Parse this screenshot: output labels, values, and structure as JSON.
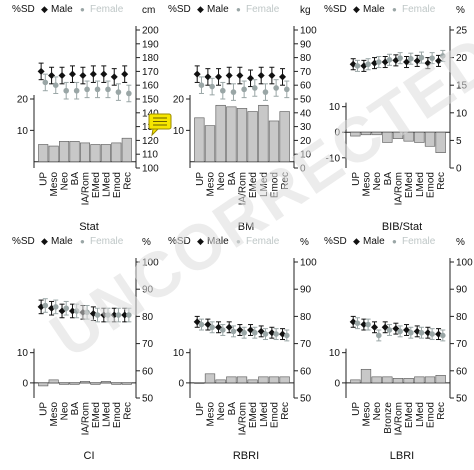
{
  "figure": {
    "watermark_text": "UNCORRECTED PROOF",
    "colors": {
      "male": "#111111",
      "female": "#9aa6a6",
      "bar": "#c8c8c8",
      "axis": "#222222",
      "note_fill": "#f6e600",
      "note_stroke": "#9a8a00",
      "watermark": "#dedede"
    }
  },
  "chart_data": [
    {
      "type": "bar+errorbar",
      "panel_title": "Stat",
      "legend": {
        "sd_label": "%SD",
        "male_label": "Male",
        "female_label": "Female",
        "marker": "◆",
        "dot": "●"
      },
      "right_axis_unit": "cm",
      "right_axis": {
        "min": 100,
        "max": 200,
        "ticks": [
          100,
          110,
          120,
          130,
          140,
          150,
          160,
          170,
          180,
          190,
          200
        ]
      },
      "left_axis": {
        "min": -2,
        "max": 42,
        "ticks": [
          10,
          20
        ]
      },
      "categories": [
        "UP",
        "Meso",
        "Neo",
        "BA",
        "IA/Rom",
        "EMed",
        "LMed",
        "Emod",
        "Rec"
      ],
      "male": [
        170,
        167,
        167,
        168,
        167,
        168,
        168,
        166,
        168
      ],
      "male_err": [
        6,
        6,
        6,
        6,
        6,
        6,
        6,
        6,
        6
      ],
      "female": [
        162,
        160,
        156,
        156,
        157,
        157,
        157,
        155,
        154
      ],
      "female_err": [
        6,
        6,
        6,
        6,
        6,
        6,
        6,
        6,
        6
      ],
      "sd_bars": [
        5.5,
        5.0,
        6.5,
        6.5,
        6.0,
        5.5,
        5.5,
        6.0,
        7.5
      ]
    },
    {
      "type": "bar+errorbar",
      "panel_title": "BM",
      "legend": {
        "sd_label": "%SD",
        "male_label": "Male",
        "female_label": "Female",
        "marker": "◆",
        "dot": "●"
      },
      "right_axis_unit": "kg",
      "right_axis": {
        "min": 0,
        "max": 100,
        "ticks": [
          0,
          10,
          20,
          30,
          40,
          50,
          60,
          70,
          80,
          90,
          100
        ]
      },
      "left_axis": {
        "min": -2,
        "max": 42,
        "ticks": [
          10,
          20
        ]
      },
      "categories": [
        "UP",
        "Meso",
        "Neo",
        "BA",
        "IA/Rom",
        "EMed",
        "LMed",
        "Emod",
        "Rec"
      ],
      "male": [
        68,
        66,
        66,
        67,
        67,
        65,
        67,
        67,
        66
      ],
      "male_err": [
        6,
        6,
        6,
        6,
        6,
        6,
        6,
        6,
        6
      ],
      "female": [
        60,
        59,
        56,
        55,
        57,
        58,
        55,
        58,
        57
      ],
      "female_err": [
        6,
        6,
        6,
        6,
        6,
        6,
        6,
        6,
        6
      ],
      "sd_bars": [
        14,
        11.5,
        18,
        17.5,
        17,
        16,
        18,
        13,
        16
      ]
    },
    {
      "type": "bar+errorbar",
      "panel_title": "BIB/Stat",
      "legend": {
        "sd_label": "%SD",
        "male_label": "Male",
        "female_label": "Female",
        "marker": "◆",
        "dot": "●"
      },
      "right_axis_unit": "%",
      "right_axis": {
        "min": 0,
        "max": 25,
        "ticks": [
          0,
          5,
          10,
          15,
          20,
          25
        ]
      },
      "left_axis": {
        "min": -14,
        "max": 40,
        "ticks": [
          -10,
          0,
          10
        ]
      },
      "categories": [
        "UP",
        "Meso",
        "Neo",
        "BA",
        "IA/Rom",
        "EMed",
        "LMed",
        "Emod",
        "Rec"
      ],
      "male": [
        18.8,
        18.5,
        19,
        19.2,
        19.5,
        19.2,
        19.4,
        19,
        19.4
      ],
      "male_err": [
        1.0,
        1.0,
        1.0,
        1.0,
        1.0,
        1.0,
        1.0,
        1.0,
        1.0
      ],
      "female": [
        18.5,
        18.8,
        19.2,
        19.6,
        19.9,
        19.8,
        20,
        19.9,
        20.3
      ],
      "female_err": [
        1.0,
        1.0,
        1.0,
        1.0,
        1.0,
        1.0,
        1.0,
        1.0,
        1.0
      ],
      "sd_bars": [
        -1.5,
        -1,
        -1,
        -4,
        -2.5,
        -3.5,
        -4,
        -5.5,
        -8
      ]
    },
    {
      "type": "bar+errorbar",
      "panel_title": "CI",
      "legend": {
        "sd_label": "%SD",
        "male_label": "Male",
        "female_label": "Female",
        "marker": "◆",
        "dot": "●"
      },
      "right_axis_unit": "%",
      "right_axis": {
        "min": 50,
        "max": 100,
        "ticks": [
          50,
          60,
          70,
          80,
          90,
          100
        ]
      },
      "left_axis": {
        "min": -5,
        "max": 40,
        "ticks": [
          0,
          10
        ]
      },
      "categories": [
        "UP",
        "Meso",
        "Neo",
        "BA",
        "IA/Rom",
        "EMed",
        "LMed",
        "Emod",
        "Rec"
      ],
      "male": [
        83.5,
        83,
        82,
        82,
        81.5,
        81,
        80.5,
        80.5,
        80.5
      ],
      "male_err": [
        2.5,
        2.5,
        2.5,
        2.5,
        2.5,
        2.5,
        2.5,
        2.5,
        2.5
      ],
      "female": [
        84,
        83.5,
        83,
        82,
        81.5,
        80.5,
        80.5,
        80.5,
        80.5
      ],
      "female_err": [
        2.5,
        2.5,
        2.5,
        2.5,
        2.5,
        2.5,
        2.5,
        2.5,
        2.5
      ],
      "sd_bars": [
        -1,
        1,
        -0.5,
        -0.5,
        0.5,
        -0.5,
        0.5,
        -0.5,
        -0.5
      ]
    },
    {
      "type": "bar+errorbar",
      "panel_title": "RBRI",
      "legend": {
        "sd_label": "%SD",
        "male_label": "Male",
        "female_label": "Female",
        "marker": "◆",
        "dot": "●"
      },
      "right_axis_unit": "%",
      "right_axis": {
        "min": 50,
        "max": 100,
        "ticks": [
          50,
          60,
          70,
          80,
          90,
          100
        ]
      },
      "left_axis": {
        "min": -5,
        "max": 40,
        "ticks": [
          0,
          10
        ]
      },
      "categories": [
        "UP",
        "Meso",
        "Neo",
        "BA",
        "IA/Rom",
        "EMed",
        "LMed",
        "Emod",
        "Rec"
      ],
      "male": [
        78,
        77,
        76,
        76,
        75,
        75,
        74.5,
        74,
        73.5
      ],
      "male_err": [
        2,
        2,
        2,
        2,
        2,
        2,
        2,
        2,
        2
      ],
      "female": [
        77,
        76,
        75,
        74.5,
        74,
        74,
        73.5,
        73.5,
        73
      ],
      "female_err": [
        2,
        2,
        2,
        2,
        2,
        2,
        2,
        2,
        2
      ],
      "sd_bars": [
        0,
        3,
        1,
        2,
        2,
        1,
        2,
        2,
        2
      ]
    },
    {
      "type": "bar+errorbar",
      "panel_title": "LBRI",
      "legend": {
        "sd_label": "%SD",
        "male_label": "Male",
        "female_label": "Female",
        "marker": "◆",
        "dot": "●"
      },
      "right_axis_unit": "%",
      "right_axis": {
        "min": 50,
        "max": 100,
        "ticks": [
          50,
          60,
          70,
          80,
          90,
          100
        ]
      },
      "left_axis": {
        "min": -5,
        "max": 40,
        "ticks": [
          0,
          10
        ]
      },
      "categories": [
        "UP",
        "Meso",
        "Neo",
        "Bronze",
        "IA/Rom",
        "EMed",
        "LMed",
        "Emod",
        "Rec"
      ],
      "male": [
        78,
        77,
        76,
        76,
        75.5,
        75,
        74.5,
        74,
        73.5
      ],
      "male_err": [
        2,
        2,
        2,
        2,
        2,
        2,
        2,
        2,
        2
      ],
      "female": [
        77.5,
        77,
        73,
        75,
        74.5,
        74,
        74,
        73.5,
        73
      ],
      "female_err": [
        2,
        2,
        2,
        2,
        2,
        2,
        2,
        2,
        2
      ],
      "sd_bars": [
        1,
        4.5,
        2,
        2,
        1.5,
        1.5,
        2,
        2,
        2.5
      ]
    }
  ]
}
